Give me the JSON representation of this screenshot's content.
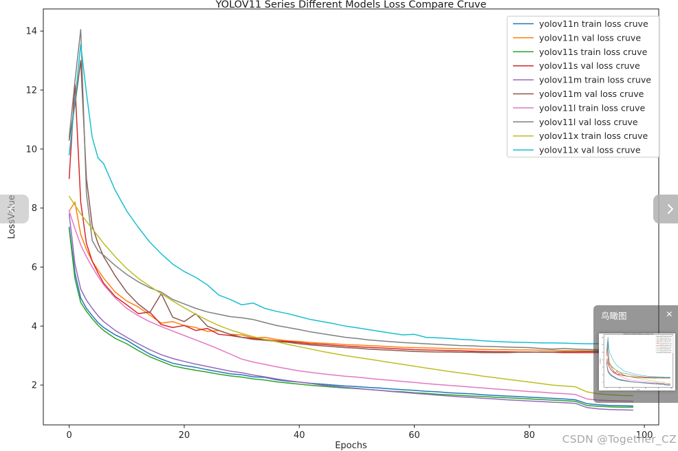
{
  "page": {
    "watermark": "CSDN @Together_CZ"
  },
  "overlays": {
    "minimap": {
      "title": "鸟瞰图",
      "close_label": "×"
    }
  },
  "chart_data": {
    "type": "line",
    "title": "YOLOV11 Series Different Models Loss Compare Cruve",
    "xlabel": "Epochs",
    "ylabel": "LossValue",
    "xlim": [
      -4.5,
      102.5
    ],
    "ylim": [
      0.65,
      14.75
    ],
    "xticks": [
      0,
      20,
      40,
      60,
      80,
      100
    ],
    "yticks": [
      2,
      4,
      6,
      8,
      10,
      12,
      14
    ],
    "grid": false,
    "legend_position": "upper right",
    "text_color": "#262626",
    "x": [
      0,
      1,
      2,
      3,
      4,
      5,
      6,
      8,
      10,
      12,
      14,
      16,
      18,
      20,
      22,
      24,
      26,
      28,
      30,
      32,
      34,
      36,
      38,
      40,
      42,
      44,
      46,
      48,
      50,
      52,
      54,
      56,
      58,
      60,
      62,
      64,
      66,
      68,
      70,
      72,
      74,
      76,
      78,
      80,
      82,
      84,
      86,
      88,
      90,
      92,
      94,
      96,
      98
    ],
    "series": [
      {
        "name": "yolov11n train loss cruve",
        "color": "#1f77b4",
        "values": [
          7.35,
          5.8,
          4.95,
          4.6,
          4.35,
          4.12,
          3.95,
          3.7,
          3.52,
          3.28,
          3.05,
          2.88,
          2.74,
          2.66,
          2.6,
          2.52,
          2.45,
          2.38,
          2.35,
          2.28,
          2.26,
          2.18,
          2.13,
          2.1,
          2.06,
          2.03,
          2.0,
          1.97,
          1.95,
          1.92,
          1.9,
          1.87,
          1.84,
          1.82,
          1.79,
          1.77,
          1.74,
          1.72,
          1.7,
          1.67,
          1.65,
          1.63,
          1.61,
          1.59,
          1.57,
          1.55,
          1.53,
          1.5,
          1.37,
          1.33,
          1.31,
          1.3,
          1.29
        ]
      },
      {
        "name": "yolov11n val loss cruve",
        "color": "#ff7f0e",
        "values": [
          7.9,
          8.2,
          7.1,
          6.6,
          6.2,
          5.9,
          5.62,
          5.15,
          4.85,
          4.65,
          4.38,
          4.1,
          4.15,
          4.02,
          3.95,
          3.82,
          3.85,
          3.72,
          3.7,
          3.6,
          3.62,
          3.55,
          3.5,
          3.48,
          3.44,
          3.42,
          3.4,
          3.37,
          3.36,
          3.34,
          3.32,
          3.3,
          3.28,
          3.27,
          3.26,
          3.25,
          3.24,
          3.23,
          3.22,
          3.21,
          3.2,
          3.2,
          3.19,
          3.19,
          3.18,
          3.18,
          3.17,
          3.17,
          3.16,
          3.16,
          3.15,
          3.15,
          3.15
        ]
      },
      {
        "name": "yolov11s train loss cruve",
        "color": "#2ca02c",
        "values": [
          7.3,
          5.6,
          4.8,
          4.5,
          4.25,
          4.03,
          3.85,
          3.58,
          3.4,
          3.17,
          2.96,
          2.8,
          2.65,
          2.57,
          2.5,
          2.44,
          2.37,
          2.31,
          2.27,
          2.21,
          2.17,
          2.11,
          2.07,
          2.03,
          1.99,
          1.96,
          1.93,
          1.9,
          1.88,
          1.85,
          1.82,
          1.79,
          1.77,
          1.74,
          1.72,
          1.69,
          1.67,
          1.65,
          1.63,
          1.61,
          1.59,
          1.57,
          1.55,
          1.53,
          1.51,
          1.49,
          1.47,
          1.45,
          1.31,
          1.28,
          1.26,
          1.25,
          1.25
        ]
      },
      {
        "name": "yolov11s val loss cruve",
        "color": "#d62728",
        "values": [
          9.0,
          12.2,
          8.2,
          6.8,
          6.2,
          5.8,
          5.45,
          5.0,
          4.72,
          4.42,
          4.48,
          4.05,
          3.95,
          4.02,
          3.85,
          3.92,
          3.72,
          3.68,
          3.62,
          3.58,
          3.55,
          3.5,
          3.48,
          3.44,
          3.4,
          3.38,
          3.35,
          3.32,
          3.3,
          3.28,
          3.26,
          3.24,
          3.22,
          3.2,
          3.19,
          3.18,
          3.17,
          3.16,
          3.15,
          3.14,
          3.13,
          3.13,
          3.12,
          3.12,
          3.11,
          3.11,
          3.1,
          3.1,
          3.1,
          3.1,
          3.1,
          3.1,
          3.1
        ]
      },
      {
        "name": "yolov11m train loss cruve",
        "color": "#9467bd",
        "values": [
          7.8,
          6.1,
          5.25,
          4.88,
          4.6,
          4.35,
          4.15,
          3.85,
          3.62,
          3.4,
          3.2,
          3.03,
          2.9,
          2.8,
          2.71,
          2.63,
          2.55,
          2.47,
          2.42,
          2.34,
          2.28,
          2.21,
          2.15,
          2.1,
          2.05,
          2.0,
          1.96,
          1.92,
          1.89,
          1.85,
          1.82,
          1.78,
          1.75,
          1.72,
          1.69,
          1.66,
          1.63,
          1.6,
          1.58,
          1.55,
          1.53,
          1.5,
          1.48,
          1.46,
          1.44,
          1.42,
          1.4,
          1.38,
          1.24,
          1.19,
          1.17,
          1.16,
          1.15
        ]
      },
      {
        "name": "yolov11m val loss cruve",
        "color": "#8c564b",
        "values": [
          10.3,
          11.5,
          13.0,
          9.0,
          7.4,
          6.8,
          6.35,
          5.7,
          5.15,
          4.75,
          4.45,
          5.1,
          4.3,
          4.15,
          4.42,
          4.0,
          3.85,
          3.72,
          3.62,
          3.55,
          3.52,
          3.48,
          3.45,
          3.4,
          3.36,
          3.33,
          3.3,
          3.27,
          3.25,
          3.22,
          3.2,
          3.18,
          3.16,
          3.14,
          3.13,
          3.12,
          3.12,
          3.11,
          3.11,
          3.1,
          3.1,
          3.1,
          3.11,
          3.11,
          3.12,
          3.12,
          3.13,
          3.13,
          3.14,
          3.14,
          3.15,
          3.15,
          3.15
        ]
      },
      {
        "name": "yolov11l train loss cruve",
        "color": "#e377c2",
        "values": [
          7.9,
          7.3,
          6.75,
          6.35,
          6.0,
          5.68,
          5.4,
          4.95,
          4.6,
          4.35,
          4.15,
          3.98,
          3.83,
          3.68,
          3.53,
          3.38,
          3.22,
          3.05,
          2.88,
          2.78,
          2.7,
          2.62,
          2.55,
          2.48,
          2.43,
          2.38,
          2.34,
          2.3,
          2.27,
          2.23,
          2.19,
          2.16,
          2.12,
          2.09,
          2.05,
          2.02,
          1.99,
          1.96,
          1.93,
          1.9,
          1.87,
          1.84,
          1.81,
          1.78,
          1.76,
          1.73,
          1.71,
          1.68,
          1.53,
          1.49,
          1.47,
          1.46,
          1.45
        ]
      },
      {
        "name": "yolov11l val loss cruve",
        "color": "#7f7f7f",
        "values": [
          10.4,
          12.3,
          14.05,
          8.5,
          6.9,
          6.55,
          6.4,
          6.05,
          5.75,
          5.5,
          5.3,
          5.15,
          4.9,
          4.75,
          4.6,
          4.48,
          4.4,
          4.32,
          4.28,
          4.22,
          4.12,
          4.02,
          3.95,
          3.88,
          3.8,
          3.74,
          3.68,
          3.62,
          3.58,
          3.53,
          3.5,
          3.47,
          3.44,
          3.42,
          3.4,
          3.38,
          3.36,
          3.34,
          3.33,
          3.31,
          3.3,
          3.29,
          3.28,
          3.27,
          3.24,
          3.22,
          3.24,
          3.22,
          3.21,
          3.2,
          3.2,
          3.2,
          3.2
        ]
      },
      {
        "name": "yolov11x train loss cruve",
        "color": "#bcbd22",
        "values": [
          8.4,
          8.1,
          7.8,
          7.55,
          7.3,
          7.05,
          6.8,
          6.35,
          5.95,
          5.62,
          5.35,
          5.1,
          4.85,
          4.62,
          4.4,
          4.2,
          4.02,
          3.87,
          3.75,
          3.64,
          3.55,
          3.47,
          3.38,
          3.3,
          3.22,
          3.14,
          3.07,
          3.0,
          2.94,
          2.88,
          2.82,
          2.76,
          2.7,
          2.64,
          2.58,
          2.52,
          2.46,
          2.41,
          2.36,
          2.3,
          2.25,
          2.2,
          2.15,
          2.1,
          2.05,
          2.0,
          1.97,
          1.94,
          1.77,
          1.7,
          1.67,
          1.65,
          1.64
        ]
      },
      {
        "name": "yolov11x val loss cruve",
        "color": "#17becf",
        "values": [
          9.8,
          11.6,
          13.55,
          11.9,
          10.4,
          9.7,
          9.5,
          8.6,
          7.9,
          7.35,
          6.85,
          6.45,
          6.1,
          5.85,
          5.65,
          5.4,
          5.05,
          4.9,
          4.72,
          4.78,
          4.6,
          4.5,
          4.42,
          4.32,
          4.22,
          4.15,
          4.08,
          4.0,
          3.94,
          3.88,
          3.82,
          3.76,
          3.7,
          3.72,
          3.62,
          3.6,
          3.58,
          3.55,
          3.53,
          3.5,
          3.48,
          3.46,
          3.45,
          3.44,
          3.43,
          3.43,
          3.42,
          3.41,
          3.4,
          3.4,
          3.39,
          3.39,
          3.38
        ]
      }
    ]
  }
}
